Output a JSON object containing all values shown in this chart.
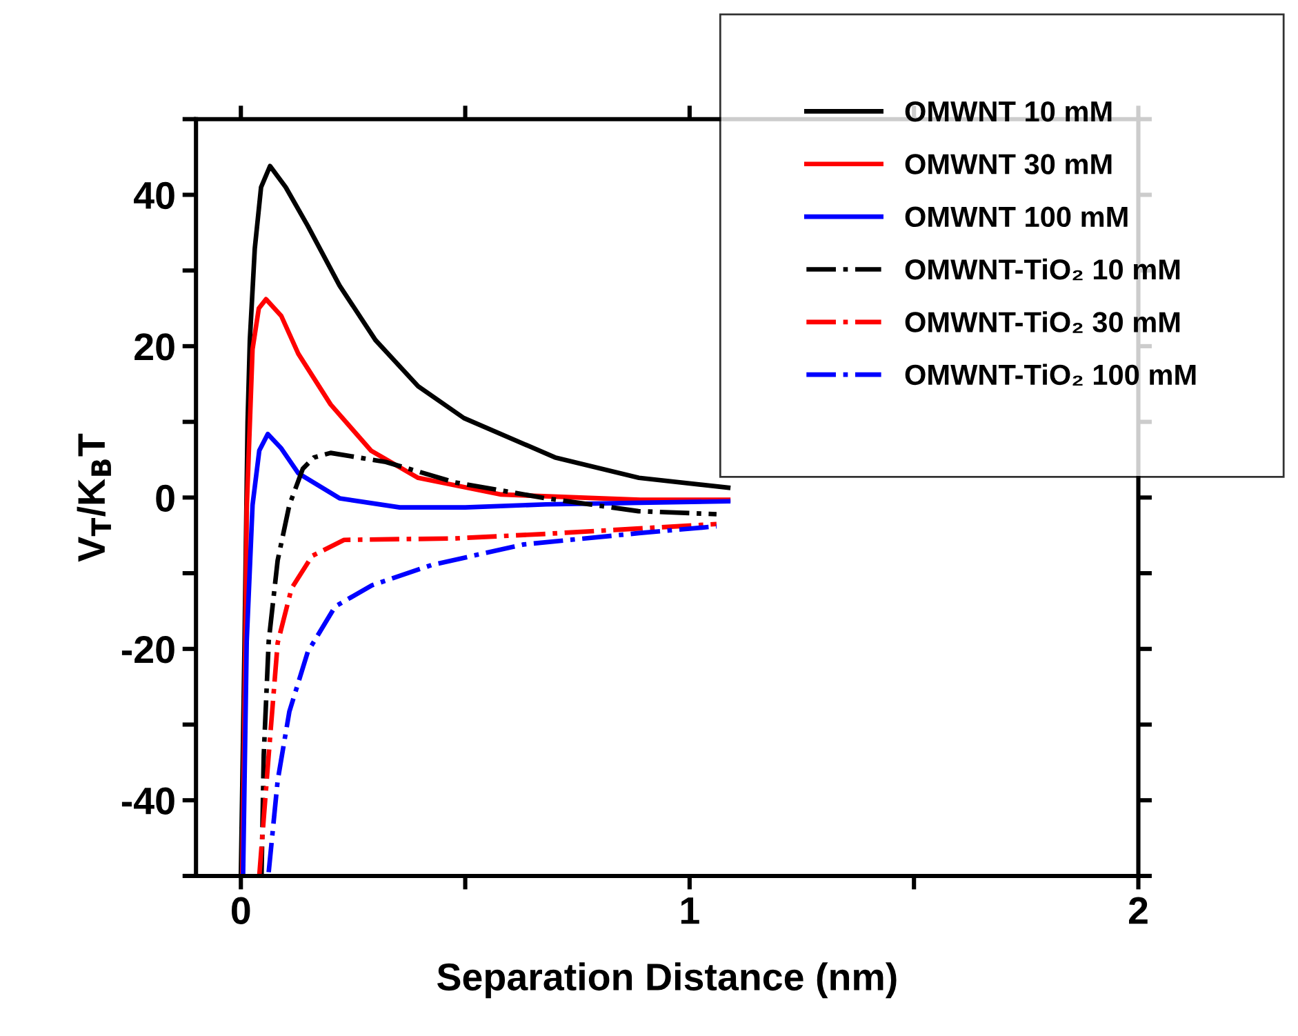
{
  "chart_data": {
    "type": "line",
    "xlabel": "Separation Distance (nm)",
    "ylabel": "V$_{T}$/K$_{B}$T",
    "xlim": [
      -0.1,
      2
    ],
    "ylim": [
      -50,
      50
    ],
    "xticks": [
      0,
      {
        "value": 0.5,
        "label": null
      },
      1,
      {
        "value": 1.5,
        "label": null
      },
      2
    ],
    "yticks": [
      {
        "value": -50,
        "label": null
      },
      -40,
      {
        "value": -30,
        "label": null
      },
      -20,
      {
        "value": -10,
        "label": null
      },
      0,
      {
        "value": 10,
        "label": null
      },
      20,
      {
        "value": 30,
        "label": null
      },
      40,
      {
        "value": 50,
        "label": null
      }
    ],
    "grid": false,
    "legend": "top right",
    "marker": "none",
    "series": [
      {
        "name": "OMWNT 10 mM",
        "color": "#000000",
        "line_style": "solid",
        "x": [
          0.0,
          0.008,
          0.015,
          0.02,
          0.031,
          0.045,
          0.065,
          0.1,
          0.149,
          0.22,
          0.3,
          0.395,
          0.497,
          0.7,
          0.887,
          1.086
        ],
        "values": [
          -50,
          -20,
          10,
          20.8,
          32.9,
          41,
          43.8,
          41,
          35.9,
          28,
          20.8,
          14.7,
          10.5,
          5.3,
          2.6,
          1.3
        ]
      },
      {
        "name": "OMWNT 30 mM",
        "color": "#ff0000",
        "line_style": "solid",
        "x": [
          0.003,
          0.01,
          0.013,
          0.026,
          0.04,
          0.056,
          0.09,
          0.128,
          0.2,
          0.29,
          0.395,
          0.58,
          0.89,
          1.086
        ],
        "values": [
          -50,
          -20,
          -1.6,
          19.6,
          25,
          26.2,
          24,
          19,
          12.3,
          6.2,
          2.6,
          0.4,
          -0.3,
          -0.3
        ]
      },
      {
        "name": "OMWNT 100 mM",
        "color": "#0000ff",
        "line_style": "solid",
        "x": [
          0.005,
          0.013,
          0.026,
          0.041,
          0.06,
          0.09,
          0.128,
          0.22,
          0.354,
          0.5,
          0.68,
          1.086
        ],
        "values": [
          -49.5,
          -19,
          -1,
          6.2,
          8.4,
          6.5,
          3.2,
          -0.1,
          -1.3,
          -1.3,
          -0.9,
          -0.5
        ]
      },
      {
        "name": "OMWNT-TiO₂ 10 mM",
        "color": "#000000",
        "line_style": "dashdot",
        "x": [
          0.046,
          0.051,
          0.062,
          0.082,
          0.108,
          0.138,
          0.163,
          0.2,
          0.323,
          0.477,
          0.68,
          0.886,
          1.06
        ],
        "values": [
          -50,
          -34,
          -19,
          -8.3,
          -1,
          3.8,
          5.3,
          5.9,
          4.7,
          2,
          -0.1,
          -1.8,
          -2.2
        ]
      },
      {
        "name": "OMWNT-TiO₂ 30 mM",
        "color": "#ff0000",
        "line_style": "dashdot",
        "x": [
          0.041,
          0.062,
          0.082,
          0.113,
          0.159,
          0.23,
          0.477,
          0.68,
          1.06
        ],
        "values": [
          -50,
          -34,
          -19.2,
          -12,
          -7.7,
          -5.6,
          -5.4,
          -4.8,
          -3.5
        ]
      },
      {
        "name": "OMWNT-TiO₂ 100 mM",
        "color": "#0000ff",
        "line_style": "dashdot",
        "x": [
          0.062,
          0.082,
          0.108,
          0.149,
          0.21,
          0.292,
          0.426,
          0.63,
          0.887,
          1.06
        ],
        "values": [
          -49.5,
          -37.4,
          -28.3,
          -20.4,
          -14.4,
          -11.6,
          -8.9,
          -6.2,
          -4.7,
          -3.8
        ]
      }
    ]
  }
}
